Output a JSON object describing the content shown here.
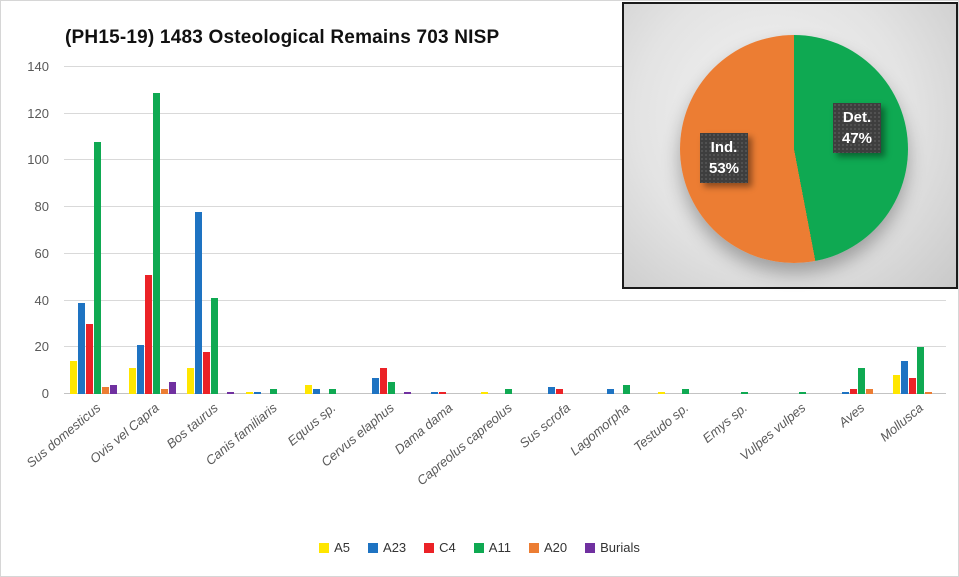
{
  "title": "(PH15-19) 1483 Osteological Remains 703 NISP",
  "chart_data": [
    {
      "type": "bar",
      "title": "(PH15-19) 1483 Osteological Remains 703 NISP",
      "categories": [
        "Sus domesticus",
        "Ovis vel Capra",
        "Bos taurus",
        "Canis familiaris",
        "Equus sp.",
        "Cervus elaphus",
        "Dama dama",
        "Capreolus capreolus",
        "Sus scrofa",
        "Lagomorpha",
        "Testudo sp.",
        "Emys sp.",
        "Vulpes vulpes",
        "Aves",
        "Mollusca"
      ],
      "series": [
        {
          "name": "A5",
          "color": "#FFE600",
          "values": [
            14,
            11,
            11,
            1,
            4,
            0,
            0,
            1,
            0,
            0,
            1,
            0,
            0,
            0,
            8
          ]
        },
        {
          "name": "A23",
          "color": "#1E73C2",
          "values": [
            39,
            21,
            78,
            1,
            2,
            7,
            1,
            0,
            3,
            2,
            0,
            0,
            0,
            1,
            14
          ]
        },
        {
          "name": "C4",
          "color": "#EB2227",
          "values": [
            30,
            51,
            18,
            0,
            0,
            11,
            1,
            0,
            2,
            0,
            0,
            0,
            0,
            2,
            7
          ]
        },
        {
          "name": "A11",
          "color": "#0FA952",
          "values": [
            108,
            129,
            41,
            2,
            2,
            5,
            0,
            2,
            0,
            4,
            2,
            1,
            1,
            11,
            20
          ]
        },
        {
          "name": "A20",
          "color": "#EC7D33",
          "values": [
            3,
            2,
            0,
            0,
            0,
            0,
            0,
            0,
            0,
            0,
            0,
            0,
            0,
            2,
            1
          ]
        },
        {
          "name": "Burials",
          "color": "#7030A0",
          "values": [
            4,
            5,
            1,
            0,
            0,
            1,
            0,
            0,
            0,
            0,
            0,
            0,
            0,
            0,
            0
          ]
        }
      ],
      "ylim": [
        0,
        140
      ],
      "ytick_interval": 20,
      "grid": true,
      "legend_position": "bottom",
      "xlabel": "",
      "ylabel": ""
    },
    {
      "type": "pie",
      "slices": [
        {
          "label": "Det.",
          "pct": 47,
          "pct_label": "47%",
          "color": "#0FA952"
        },
        {
          "label": "Ind.",
          "pct": 53,
          "pct_label": "53%",
          "color": "#EC7D33"
        }
      ],
      "start_angle_deg": 0
    }
  ],
  "axis_colors": {
    "gridline": "#d9d9d9",
    "tick_text": "#595959"
  }
}
